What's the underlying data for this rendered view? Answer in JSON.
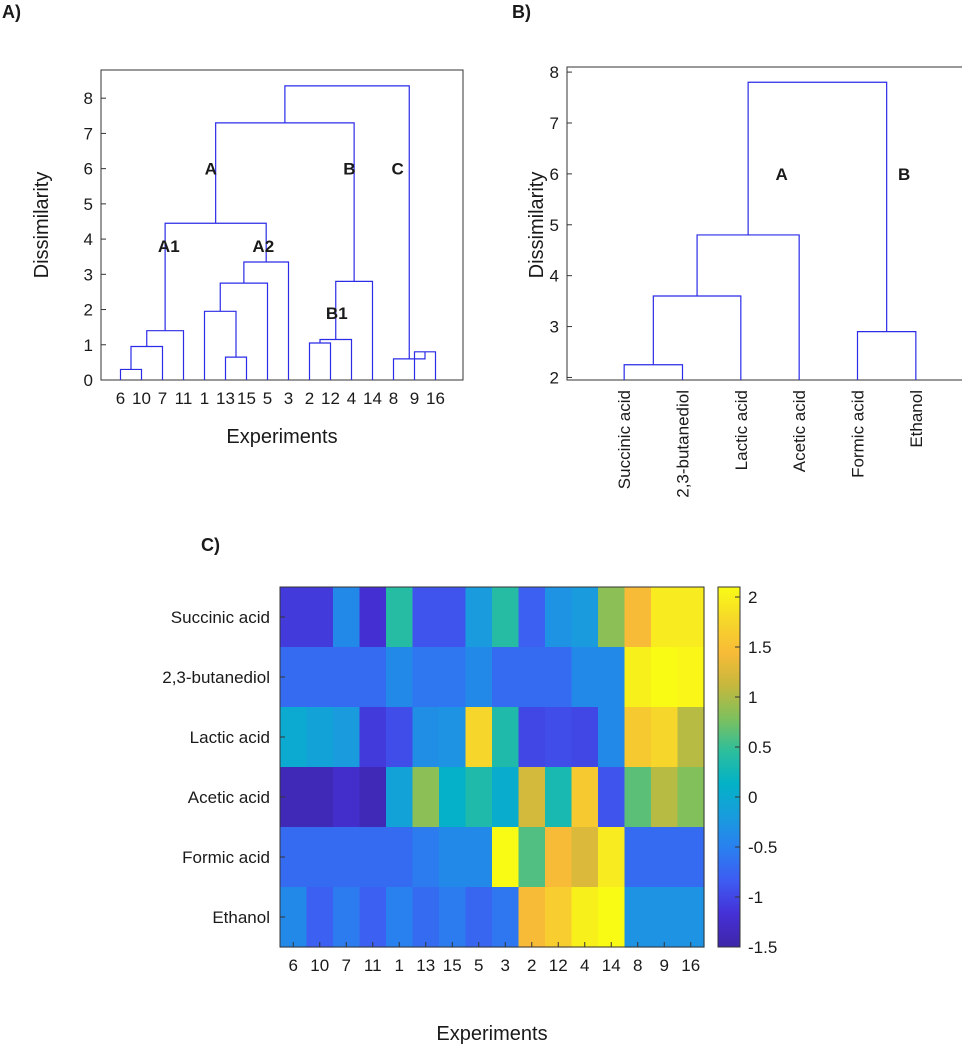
{
  "panel_labels": {
    "a": "A)",
    "b": "B)",
    "c": "C)"
  },
  "colors": {
    "dendrogram": "#2b2be8",
    "frame": "#333333",
    "text": "#1a1a1a"
  },
  "chart_data": [
    {
      "type": "dendrogram",
      "panel": "A)",
      "ylabel": "Dissimilarity",
      "xlabel": "Experiments",
      "ylim": [
        0,
        8.8
      ],
      "yticks": [
        0,
        1,
        2,
        3,
        4,
        5,
        6,
        7,
        8
      ],
      "leaves": [
        "6",
        "10",
        "7",
        "11",
        "1",
        "13",
        "15",
        "5",
        "3",
        "2",
        "12",
        "4",
        "14",
        "8",
        "9",
        "16"
      ],
      "merges": [
        [
          0,
          1,
          0.3
        ],
        [
          16,
          2,
          0.95
        ],
        [
          17,
          3,
          1.4
        ],
        [
          5,
          6,
          0.65
        ],
        [
          4,
          19,
          1.95
        ],
        [
          20,
          7,
          2.75
        ],
        [
          21,
          8,
          3.35
        ],
        [
          18,
          22,
          4.45
        ],
        [
          9,
          10,
          1.05
        ],
        [
          24,
          11,
          1.15
        ],
        [
          25,
          12,
          2.8
        ],
        [
          23,
          26,
          7.3
        ],
        [
          14,
          15,
          0.8
        ],
        [
          13,
          28,
          0.6
        ],
        [
          27,
          29,
          8.35
        ]
      ],
      "cluster_labels": [
        {
          "text": "A",
          "x": 4.3,
          "y": 6.0
        },
        {
          "text": "B",
          "x": 10.9,
          "y": 6.0
        },
        {
          "text": "C",
          "x": 13.2,
          "y": 6.0
        },
        {
          "text": "A1",
          "x": 2.3,
          "y": 3.8
        },
        {
          "text": "A2",
          "x": 6.8,
          "y": 3.8
        },
        {
          "text": "B1",
          "x": 10.3,
          "y": 1.9
        }
      ]
    },
    {
      "type": "dendrogram",
      "panel": "B)",
      "ylabel": "Dissimilarity",
      "xlabel": "",
      "ylim": [
        1.95,
        8.1
      ],
      "yticks": [
        2,
        3,
        4,
        5,
        6,
        7,
        8
      ],
      "leaves": [
        "Succinic acid",
        "2,3-butanediol",
        "Lactic acid",
        "Acetic acid",
        "Formic acid",
        "Ethanol"
      ],
      "merges": [
        [
          0,
          1,
          2.25
        ],
        [
          6,
          2,
          3.6
        ],
        [
          7,
          3,
          4.8
        ],
        [
          4,
          5,
          2.9
        ],
        [
          8,
          9,
          7.8
        ]
      ],
      "cluster_labels": [
        {
          "text": "A",
          "x": 2.7,
          "y": 6.0
        },
        {
          "text": "B",
          "x": 4.8,
          "y": 6.0
        }
      ]
    },
    {
      "type": "heatmap",
      "panel": "C)",
      "xlabel": "Experiments",
      "x": [
        "6",
        "10",
        "7",
        "11",
        "1",
        "13",
        "15",
        "5",
        "3",
        "2",
        "12",
        "4",
        "14",
        "8",
        "9",
        "16"
      ],
      "y": [
        "Succinic acid",
        "2,3-butanediol",
        "Lactic acid",
        "Acetic acid",
        "Formic acid",
        "Ethanol"
      ],
      "values": [
        [
          -1.1,
          -1.1,
          -0.4,
          -1.2,
          0.4,
          -0.9,
          -0.9,
          -0.2,
          0.4,
          -0.8,
          -0.3,
          -0.2,
          0.85,
          1.45,
          1.95,
          1.95
        ],
        [
          -0.7,
          -0.7,
          -0.7,
          -0.7,
          -0.4,
          -0.6,
          -0.6,
          -0.4,
          -0.7,
          -0.7,
          -0.7,
          -0.4,
          -0.4,
          2.0,
          2.15,
          2.05
        ],
        [
          0.0,
          -0.1,
          -0.2,
          -1.1,
          -0.95,
          -0.35,
          -0.3,
          1.75,
          0.35,
          -1.0,
          -0.95,
          -1.0,
          -0.4,
          1.6,
          1.75,
          1.05
        ],
        [
          -1.4,
          -1.4,
          -1.25,
          -1.4,
          -0.1,
          0.85,
          0.1,
          0.35,
          0.05,
          1.2,
          0.3,
          1.6,
          -0.9,
          0.65,
          1.05,
          0.8
        ],
        [
          -0.7,
          -0.7,
          -0.7,
          -0.7,
          -0.7,
          -0.55,
          -0.4,
          -0.4,
          2.15,
          0.6,
          1.45,
          1.25,
          1.95,
          -0.7,
          -0.7,
          -0.7
        ],
        [
          -0.4,
          -0.8,
          -0.55,
          -0.8,
          -0.5,
          -0.7,
          -0.55,
          -0.75,
          -0.6,
          1.45,
          1.65,
          2.0,
          2.1,
          -0.3,
          -0.3,
          -0.3
        ]
      ],
      "colorbar": {
        "min": -1.5,
        "max": 2.1,
        "ticks": [
          "2",
          "1.5",
          "1",
          "0.5",
          "0",
          "-0.5",
          "-1",
          "-1.5"
        ],
        "tick_values": [
          2,
          1.5,
          1,
          0.5,
          0,
          -0.5,
          -1,
          -1.5
        ]
      },
      "colormap": [
        "#3e26a8",
        "#4530d6",
        "#3e5bf2",
        "#2a7ff0",
        "#189cdd",
        "#03b2c6",
        "#2ebe9b",
        "#7fc05c",
        "#c6b83d",
        "#f8bb37",
        "#f6d82a",
        "#f9fb15"
      ]
    }
  ]
}
